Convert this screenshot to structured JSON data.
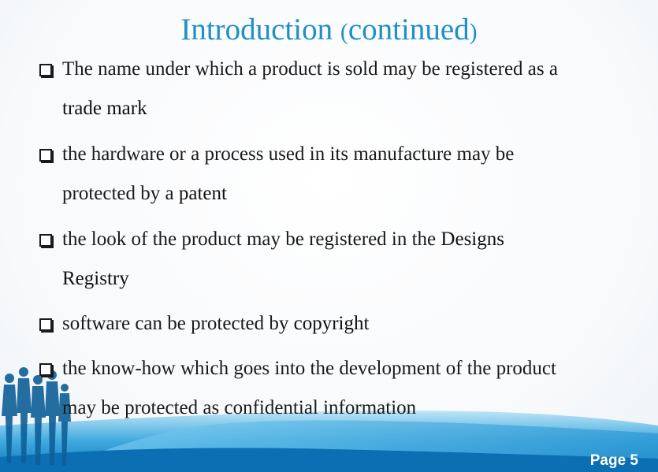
{
  "slide": {
    "title": "Introduction",
    "title_paren_open": "(",
    "title_cont": "continued",
    "title_paren_close": ")",
    "page_label": "Page 5",
    "accent_color": "#1f8fc6"
  },
  "bullets": [
    {
      "icon": "checkbox-square-icon",
      "line1": "The name under which a product is sold may be registered as a",
      "line2_emphasis": "trade mark"
    },
    {
      "icon": "checkbox-square-icon",
      "line1": "the hardware or a process used in its manufacture may be",
      "line2_prefix": "protected by a ",
      "line2_emphasis": "patent"
    },
    {
      "icon": "checkbox-square-icon",
      "line1_prefix": "the look of the product may be registered in the ",
      "line1_emphasis": "Designs",
      "line2_emphasis": "Registry"
    },
    {
      "icon": "checkbox-square-icon",
      "line1_prefix": "software can be protected by ",
      "line1_emphasis": "copyright"
    },
    {
      "icon": "checkbox-square-icon",
      "line1": "the know-how which goes into the development of the product",
      "line2": "may be protected as confidential information"
    }
  ]
}
